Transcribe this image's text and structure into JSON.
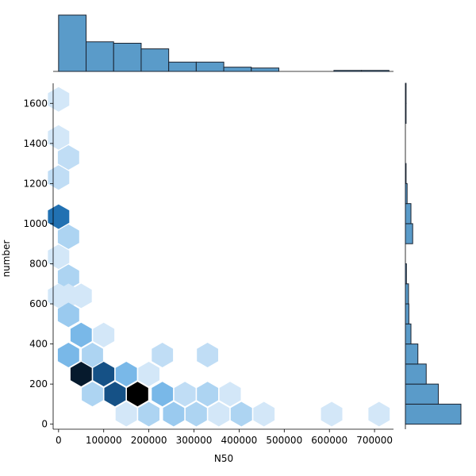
{
  "chart_data": {
    "type": "hexbin-jointplot",
    "xlabel": "N50",
    "ylabel": "number",
    "xlim": [
      -12000,
      742000
    ],
    "ylim": [
      -25,
      1700
    ],
    "grid": false,
    "x_ticks": [
      0,
      100000,
      200000,
      300000,
      400000,
      500000,
      600000,
      700000
    ],
    "x_tick_labels": [
      "0",
      "100000",
      "200000",
      "300000",
      "400000",
      "500000",
      "600000",
      "700000"
    ],
    "y_ticks": [
      0,
      200,
      400,
      600,
      800,
      1000,
      1200,
      1400,
      1600
    ],
    "y_tick_labels": [
      "0",
      "200",
      "400",
      "600",
      "800",
      "1000",
      "1200",
      "1400",
      "1600"
    ],
    "colors": {
      "hex_dark": "#000000",
      "hex_mid": "#2b8bd6",
      "hex_light": "#e6f1fb",
      "hist_fill": "#5a9bc9",
      "hist_edge": "#1a2330"
    },
    "hexbins": [
      {
        "x": 0,
        "y": 1620,
        "count": 1
      },
      {
        "x": 0,
        "y": 1430,
        "count": 1
      },
      {
        "x": 22000,
        "y": 1330,
        "count": 2
      },
      {
        "x": 0,
        "y": 1230,
        "count": 2
      },
      {
        "x": 0,
        "y": 1035,
        "count": 8
      },
      {
        "x": 22000,
        "y": 935,
        "count": 3
      },
      {
        "x": 0,
        "y": 835,
        "count": 1
      },
      {
        "x": 22000,
        "y": 735,
        "count": 3
      },
      {
        "x": 0,
        "y": 640,
        "count": 1
      },
      {
        "x": 22000,
        "y": 640,
        "count": 1
      },
      {
        "x": 50000,
        "y": 640,
        "count": 1
      },
      {
        "x": 22000,
        "y": 545,
        "count": 4
      },
      {
        "x": 50000,
        "y": 445,
        "count": 5
      },
      {
        "x": 100000,
        "y": 445,
        "count": 1
      },
      {
        "x": 22000,
        "y": 345,
        "count": 5
      },
      {
        "x": 75000,
        "y": 345,
        "count": 3
      },
      {
        "x": 230000,
        "y": 345,
        "count": 2
      },
      {
        "x": 330000,
        "y": 345,
        "count": 2
      },
      {
        "x": 50000,
        "y": 250,
        "count": 11
      },
      {
        "x": 100000,
        "y": 250,
        "count": 9
      },
      {
        "x": 150000,
        "y": 250,
        "count": 5
      },
      {
        "x": 200000,
        "y": 250,
        "count": 1
      },
      {
        "x": 75000,
        "y": 150,
        "count": 3
      },
      {
        "x": 125000,
        "y": 150,
        "count": 9
      },
      {
        "x": 175000,
        "y": 150,
        "count": 12
      },
      {
        "x": 230000,
        "y": 150,
        "count": 5
      },
      {
        "x": 280000,
        "y": 150,
        "count": 2
      },
      {
        "x": 330000,
        "y": 150,
        "count": 3
      },
      {
        "x": 380000,
        "y": 150,
        "count": 1
      },
      {
        "x": 150000,
        "y": 50,
        "count": 1
      },
      {
        "x": 200000,
        "y": 50,
        "count": 3
      },
      {
        "x": 255000,
        "y": 50,
        "count": 4
      },
      {
        "x": 305000,
        "y": 50,
        "count": 3
      },
      {
        "x": 355000,
        "y": 50,
        "count": 1
      },
      {
        "x": 405000,
        "y": 50,
        "count": 3
      },
      {
        "x": 455000,
        "y": 50,
        "count": 1
      },
      {
        "x": 605000,
        "y": 50,
        "count": 1
      },
      {
        "x": 710000,
        "y": 50,
        "count": 1
      }
    ],
    "x_hist": {
      "bin_edges": [
        0,
        61000,
        122000,
        183000,
        244000,
        305000,
        366000,
        427000,
        488000,
        549000,
        610000,
        671000,
        732000
      ],
      "counts": [
        20,
        10.5,
        10,
        8,
        3.3,
        3.3,
        1.5,
        1.2,
        0,
        0,
        0.35,
        0.35
      ]
    },
    "y_hist": {
      "bin_edges": [
        0,
        100,
        200,
        300,
        400,
        500,
        600,
        700,
        800,
        900,
        1000,
        1100,
        1200,
        1300,
        1400,
        1500,
        1600,
        1700
      ],
      "counts": [
        16,
        9.5,
        6,
        3.6,
        1.6,
        1,
        0.9,
        0.3,
        0,
        2.1,
        1.6,
        0.5,
        0.2,
        0,
        0,
        0.2,
        0.2
      ],
      "max": 16
    }
  }
}
